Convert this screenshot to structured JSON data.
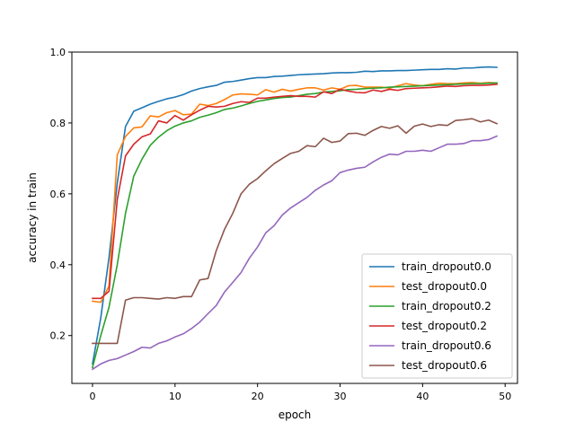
{
  "chart_data": {
    "type": "line",
    "title": "",
    "xlabel": "epoch",
    "ylabel": "accuracy in train",
    "xlim": [
      -2.5,
      51.5
    ],
    "ylim": [
      0.065,
      1.0
    ],
    "xticks": [
      0,
      10,
      20,
      30,
      40,
      50
    ],
    "yticks": [
      0.2,
      0.4,
      0.6,
      0.8,
      1.0
    ],
    "xtick_labels": [
      "0",
      "10",
      "20",
      "30",
      "40",
      "50"
    ],
    "ytick_labels": [
      "0.2",
      "0.4",
      "0.6",
      "0.8",
      "1.0"
    ],
    "grid": false,
    "legend_position": "lower-right",
    "x": [
      0,
      1,
      2,
      3,
      4,
      5,
      6,
      7,
      8,
      9,
      10,
      11,
      12,
      13,
      14,
      15,
      16,
      17,
      18,
      19,
      20,
      21,
      22,
      23,
      24,
      25,
      26,
      27,
      28,
      29,
      30,
      31,
      32,
      33,
      34,
      35,
      36,
      37,
      38,
      39,
      40,
      41,
      42,
      43,
      44,
      45,
      46,
      47,
      48,
      49
    ],
    "series": [
      {
        "name": "train_dropout0.0",
        "color": "#1f77b4",
        "values": [
          0.12,
          0.25,
          0.42,
          0.63,
          0.79,
          0.833,
          0.843,
          0.853,
          0.861,
          0.868,
          0.873,
          0.88,
          0.89,
          0.897,
          0.902,
          0.906,
          0.915,
          0.917,
          0.921,
          0.925,
          0.928,
          0.928,
          0.931,
          0.932,
          0.934,
          0.936,
          0.937,
          0.938,
          0.939,
          0.941,
          0.942,
          0.942,
          0.943,
          0.946,
          0.945,
          0.947,
          0.947,
          0.948,
          0.948,
          0.949,
          0.95,
          0.951,
          0.951,
          0.953,
          0.952,
          0.955,
          0.955,
          0.957,
          0.958,
          0.957
        ]
      },
      {
        "name": "test_dropout0.0",
        "color": "#ff7f0e",
        "values": [
          0.297,
          0.294,
          0.34,
          0.71,
          0.762,
          0.786,
          0.789,
          0.82,
          0.817,
          0.829,
          0.835,
          0.823,
          0.825,
          0.853,
          0.849,
          0.855,
          0.866,
          0.879,
          0.882,
          0.881,
          0.879,
          0.894,
          0.887,
          0.895,
          0.89,
          0.895,
          0.899,
          0.899,
          0.893,
          0.899,
          0.895,
          0.905,
          0.906,
          0.901,
          0.901,
          0.901,
          0.898,
          0.905,
          0.911,
          0.907,
          0.905,
          0.909,
          0.912,
          0.911,
          0.911,
          0.913,
          0.914,
          0.912,
          0.914,
          0.913
        ]
      },
      {
        "name": "train_dropout0.2",
        "color": "#2ca02c",
        "values": [
          0.11,
          0.2,
          0.28,
          0.4,
          0.545,
          0.65,
          0.698,
          0.737,
          0.76,
          0.778,
          0.791,
          0.8,
          0.806,
          0.816,
          0.822,
          0.829,
          0.838,
          0.842,
          0.848,
          0.855,
          0.861,
          0.865,
          0.869,
          0.872,
          0.873,
          0.877,
          0.881,
          0.883,
          0.887,
          0.889,
          0.891,
          0.894,
          0.895,
          0.897,
          0.898,
          0.899,
          0.901,
          0.902,
          0.903,
          0.904,
          0.905,
          0.906,
          0.907,
          0.908,
          0.909,
          0.91,
          0.911,
          0.911,
          0.912,
          0.913
        ]
      },
      {
        "name": "test_dropout0.2",
        "color": "#d62728",
        "values": [
          0.305,
          0.305,
          0.325,
          0.584,
          0.707,
          0.74,
          0.761,
          0.769,
          0.806,
          0.8,
          0.821,
          0.808,
          0.823,
          0.836,
          0.847,
          0.845,
          0.847,
          0.855,
          0.86,
          0.858,
          0.87,
          0.87,
          0.873,
          0.875,
          0.877,
          0.875,
          0.875,
          0.873,
          0.888,
          0.883,
          0.895,
          0.89,
          0.886,
          0.885,
          0.893,
          0.889,
          0.895,
          0.892,
          0.897,
          0.898,
          0.899,
          0.9,
          0.902,
          0.904,
          0.903,
          0.905,
          0.906,
          0.906,
          0.907,
          0.909
        ]
      },
      {
        "name": "train_dropout0.6",
        "color": "#9467bd",
        "values": [
          0.105,
          0.12,
          0.13,
          0.135,
          0.145,
          0.155,
          0.167,
          0.165,
          0.178,
          0.185,
          0.196,
          0.205,
          0.22,
          0.238,
          0.262,
          0.285,
          0.323,
          0.35,
          0.378,
          0.418,
          0.45,
          0.49,
          0.51,
          0.54,
          0.56,
          0.575,
          0.59,
          0.61,
          0.625,
          0.637,
          0.66,
          0.667,
          0.672,
          0.675,
          0.69,
          0.703,
          0.712,
          0.71,
          0.72,
          0.72,
          0.723,
          0.72,
          0.73,
          0.74,
          0.74,
          0.742,
          0.75,
          0.75,
          0.753,
          0.763
        ]
      },
      {
        "name": "test_dropout0.6",
        "color": "#8c564b",
        "values": [
          0.178,
          0.178,
          0.178,
          0.178,
          0.3,
          0.307,
          0.307,
          0.305,
          0.303,
          0.307,
          0.305,
          0.31,
          0.31,
          0.357,
          0.361,
          0.44,
          0.5,
          0.545,
          0.6,
          0.627,
          0.643,
          0.665,
          0.685,
          0.7,
          0.714,
          0.72,
          0.736,
          0.733,
          0.757,
          0.745,
          0.749,
          0.77,
          0.771,
          0.765,
          0.779,
          0.79,
          0.785,
          0.792,
          0.771,
          0.791,
          0.797,
          0.79,
          0.795,
          0.793,
          0.807,
          0.809,
          0.812,
          0.803,
          0.808,
          0.798
        ]
      }
    ]
  }
}
